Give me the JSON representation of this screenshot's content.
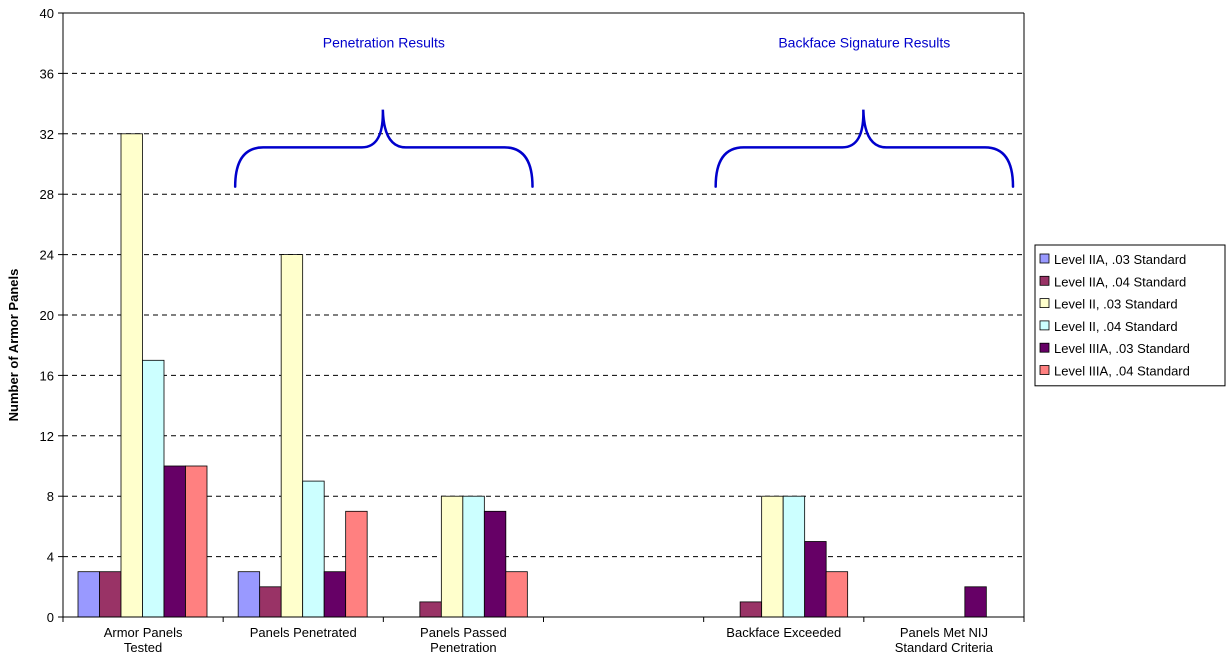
{
  "chart_data": {
    "type": "bar",
    "title": "",
    "xlabel": "",
    "ylabel": "Number of Armor Panels",
    "ylim": [
      0,
      40
    ],
    "yticks": [
      0,
      4,
      8,
      12,
      16,
      20,
      24,
      28,
      32,
      36,
      40
    ],
    "grid": true,
    "legend_position": "right",
    "categories": [
      [
        "Armor Panels",
        "Tested"
      ],
      [
        "Panels Penetrated"
      ],
      [
        "Panels Passed",
        "Penetration"
      ],
      [],
      [
        "Backface Exceeded"
      ],
      [
        "Panels Met NIJ",
        "Standard Criteria"
      ]
    ],
    "series": [
      {
        "name": "Level IIA, .03 Standard",
        "color": "#9999ff",
        "values": [
          3,
          3,
          0,
          0,
          0,
          0
        ]
      },
      {
        "name": "Level IIA, .04 Standard",
        "color": "#993366",
        "values": [
          3,
          2,
          1,
          0,
          1,
          0
        ]
      },
      {
        "name": "Level II, .03 Standard",
        "color": "#ffffcc",
        "values": [
          32,
          24,
          8,
          0,
          8,
          0
        ]
      },
      {
        "name": "Level II, .04 Standard",
        "color": "#ccffff",
        "values": [
          17,
          9,
          8,
          0,
          8,
          0
        ]
      },
      {
        "name": "Level IIIA, .03 Standard",
        "color": "#660066",
        "values": [
          10,
          3,
          7,
          0,
          5,
          2
        ]
      },
      {
        "name": "Level IIIA, .04 Standard",
        "color": "#ff8080",
        "values": [
          10,
          7,
          3,
          0,
          3,
          0
        ]
      }
    ],
    "annotations": [
      {
        "text": "Penetration Results",
        "spans_categories": [
          1,
          2
        ],
        "color": "#0000cc"
      },
      {
        "text": "Backface Signature Results",
        "spans_categories": [
          4,
          5
        ],
        "color": "#0000cc"
      }
    ]
  }
}
